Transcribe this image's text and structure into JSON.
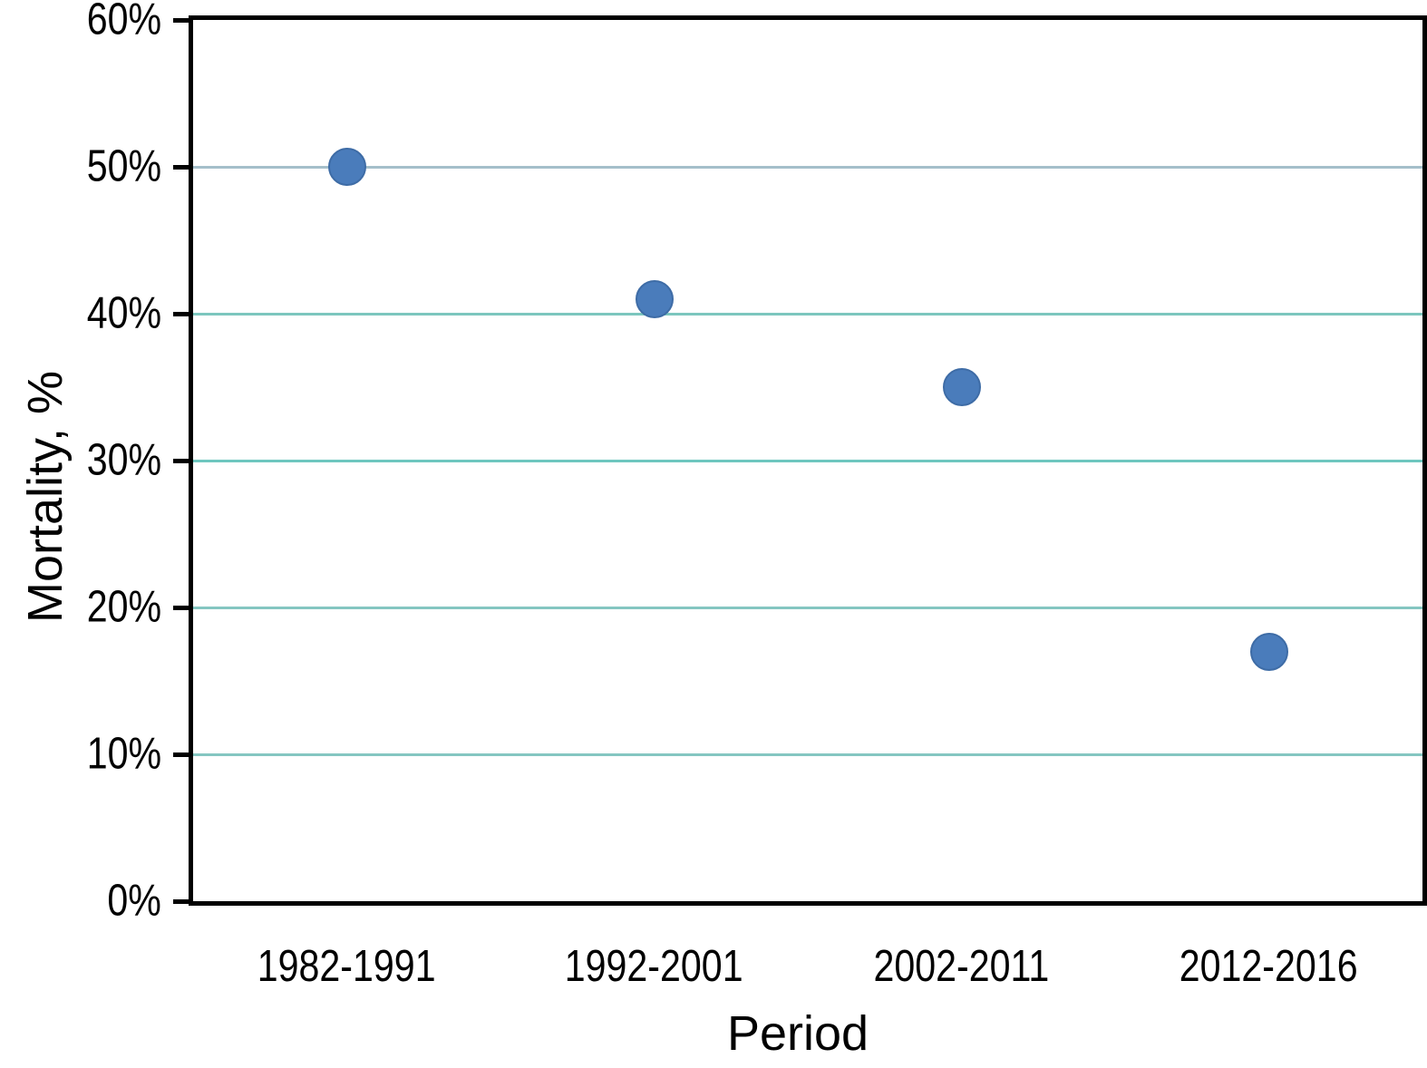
{
  "chart_data": {
    "type": "scatter",
    "title": "",
    "xlabel": "Period",
    "ylabel": "Mortality, %",
    "categories": [
      "1982-1991",
      "1992-2001",
      "2002-2011",
      "2012-2016"
    ],
    "series": [
      {
        "name": "Mortality",
        "values": [
          50,
          41,
          35,
          17
        ]
      }
    ],
    "unit": "%",
    "ylim": [
      0,
      60
    ],
    "y_ticks": [
      {
        "value": 60,
        "label": "60%"
      },
      {
        "value": 50,
        "label": "50%"
      },
      {
        "value": 40,
        "label": "40%"
      },
      {
        "value": 30,
        "label": "30%"
      },
      {
        "value": 20,
        "label": "20%"
      },
      {
        "value": 10,
        "label": "10%"
      },
      {
        "value": 0,
        "label": "0%"
      }
    ],
    "gridlines": [
      {
        "value": 50,
        "color": "#A5BFCA"
      },
      {
        "value": 40,
        "color": "#7CC6BE"
      },
      {
        "value": 30,
        "color": "#6EC6BF"
      },
      {
        "value": 20,
        "color": "#84C6C1"
      },
      {
        "value": 10,
        "color": "#84C6C1"
      }
    ],
    "grid": "horizontal",
    "legend_position": "none",
    "colors": {
      "marker_fill": "#4A7CBB",
      "marker_border": "#3E6CA6",
      "axis": "#000000",
      "text": "#000000",
      "background": "#FFFFFF"
    }
  }
}
